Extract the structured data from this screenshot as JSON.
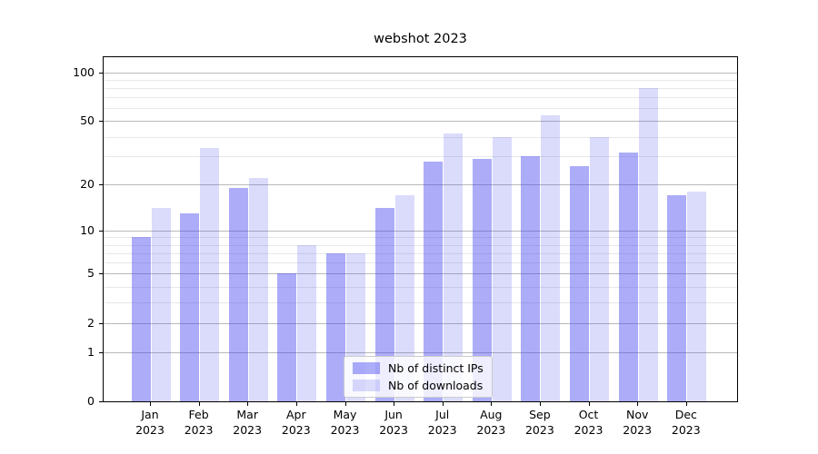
{
  "chart_data": {
    "type": "bar",
    "title": "webshot 2023",
    "categories": [
      "Jan 2023",
      "Feb 2023",
      "Mar 2023",
      "Apr 2023",
      "May 2023",
      "Jun 2023",
      "Jul 2023",
      "Aug 2023",
      "Sep 2023",
      "Oct 2023",
      "Nov 2023",
      "Dec 2023"
    ],
    "series": [
      {
        "name": "Nb of distinct IPs",
        "color": "rgba(62,62,240,0.43)",
        "values": [
          9,
          13,
          19,
          5,
          7,
          14,
          28,
          29,
          30,
          26,
          32,
          17
        ]
      },
      {
        "name": "Nb of downloads",
        "color": "rgba(62,62,240,0.19)",
        "values": [
          14,
          34,
          22,
          8,
          7,
          17,
          42,
          40,
          54,
          40,
          80,
          18
        ]
      }
    ],
    "yscale": "log1p",
    "ylim": [
      0,
      124
    ],
    "yticks": [
      100,
      50,
      20,
      10,
      5,
      2,
      1,
      0
    ],
    "minor_gridlines": [
      3,
      4,
      6,
      7,
      8,
      9,
      30,
      40,
      60,
      70,
      80,
      90
    ],
    "grid": true,
    "grid_major_color": "#b9b9b9",
    "grid_minor_color": "#e8e8e8",
    "axis_color": "#000000",
    "background": "#ffffff",
    "legend_position": "lower center",
    "xlabel": "",
    "ylabel": ""
  }
}
